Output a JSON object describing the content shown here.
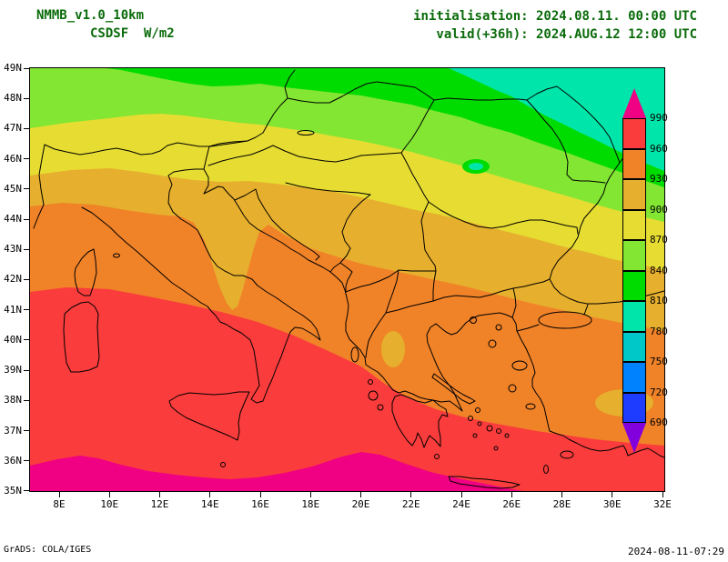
{
  "header": {
    "model": "NMMB_v1.0_10km",
    "variable": "CSDSF  W/m2",
    "init_line": "initialisation: 2024.08.11. 00:00 UTC",
    "valid_line": "valid(+36h): 2024.AUG.12 12:00 UTC"
  },
  "footer": {
    "left": "GrADS: COLA/IGES",
    "right": "2024-08-11-07:29"
  },
  "axes": {
    "lat_labels": [
      "49N",
      "48N",
      "47N",
      "46N",
      "45N",
      "44N",
      "43N",
      "42N",
      "41N",
      "40N",
      "39N",
      "38N",
      "37N",
      "36N",
      "35N"
    ],
    "lon_labels": [
      "8E",
      "10E",
      "12E",
      "14E",
      "16E",
      "18E",
      "20E",
      "22E",
      "24E",
      "26E",
      "28E",
      "30E",
      "32E"
    ]
  },
  "colorbar": {
    "labels": [
      "990",
      "960",
      "930",
      "900",
      "870",
      "840",
      "810",
      "780",
      "750",
      "720",
      "690"
    ],
    "colors": [
      "#f00082",
      "#fa3c3c",
      "#f08228",
      "#e6af2d",
      "#e6dc32",
      "#82e632",
      "#00dc00",
      "#00e6aa",
      "#00c8c8",
      "#0082ff",
      "#1e3cff",
      "#8200dc"
    ],
    "outline": "#000000"
  },
  "text_colors": {
    "title": "#0a6b0a",
    "annotation": "#000000"
  },
  "chart_data": {
    "type": "heatmap",
    "title": "NMMB_v1.0_10km CSDSF",
    "units": "W/m2",
    "initialisation": "2024.08.11. 00:00 UTC",
    "valid": "2024.AUG.12 12:00 UTC",
    "extent": {
      "lon": [
        6.8,
        32.1
      ],
      "lat": [
        35,
        49
      ]
    },
    "contour_levels": [
      690,
      720,
      750,
      780,
      810,
      840,
      870,
      900,
      930,
      960,
      990
    ],
    "legend_position": "right",
    "grid": {
      "lons": [
        8,
        10,
        12,
        14,
        16,
        18,
        20,
        22,
        24,
        26,
        28,
        30,
        32
      ],
      "lats": [
        49,
        47,
        45,
        43,
        41,
        39,
        37,
        35
      ],
      "values_w_m2": [
        [
          860,
          858,
          852,
          856,
          860,
          856,
          854,
          848,
          822,
          800,
          794,
          790,
          786
        ],
        [
          878,
          874,
          864,
          868,
          876,
          880,
          872,
          864,
          846,
          828,
          812,
          800,
          794
        ],
        [
          914,
          910,
          904,
          900,
          898,
          894,
          888,
          880,
          868,
          856,
          844,
          834,
          826
        ],
        [
          946,
          942,
          936,
          922,
          930,
          922,
          914,
          904,
          894,
          884,
          872,
          862,
          854
        ],
        [
          976,
          974,
          966,
          954,
          950,
          944,
          936,
          928,
          918,
          908,
          896,
          888,
          880
        ],
        [
          988,
          986,
          982,
          978,
          974,
          966,
          956,
          948,
          940,
          930,
          920,
          912,
          904
        ],
        [
          996,
          992,
          990,
          988,
          984,
          978,
          970,
          962,
          954,
          946,
          938,
          930,
          924
        ],
        [
          1005,
          1002,
          1000,
          998,
          996,
          992,
          986,
          994,
          992,
          984,
          964,
          952,
          944
        ]
      ]
    }
  }
}
